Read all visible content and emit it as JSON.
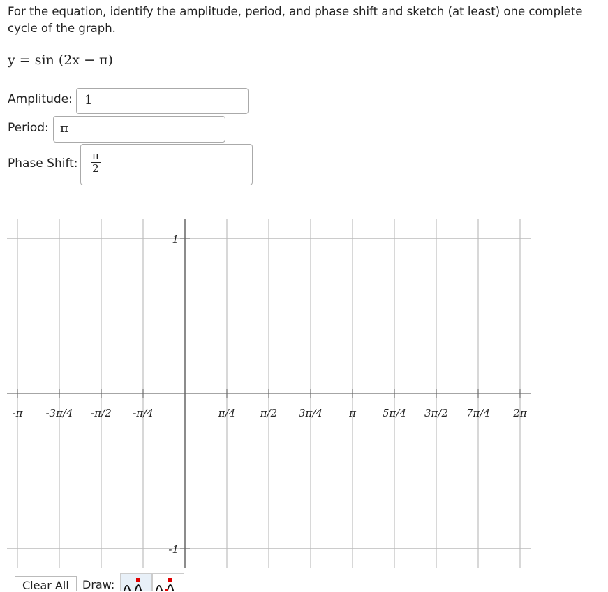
{
  "question": "For the equation, identify the amplitude, period, and phase shift and sketch (at least) one complete cycle of the graph.",
  "equation": "y = sin (2x − π)",
  "fields": {
    "amplitude": {
      "label": "Amplitude:",
      "value": "1"
    },
    "period": {
      "label": "Period:",
      "value": "π"
    },
    "phase_shift": {
      "label": "Phase Shift:",
      "numerator": "π",
      "denominator": "2"
    }
  },
  "graph": {
    "x_ticks": [
      "-π",
      "-3π/4",
      "-π/2",
      "-π/4",
      "π/4",
      "π/2",
      "3π/4",
      "π",
      "5π/4",
      "3π/2",
      "7π/4",
      "2π"
    ],
    "y_ticks": [
      "1",
      "-1"
    ]
  },
  "toolbar": {
    "clear_label": "Clear All",
    "draw_label": "Draw:",
    "tools": [
      "sine-peak-tool",
      "sine-zero-tool"
    ],
    "active_color": "#e8f0f8",
    "point_color": "#e00000"
  }
}
